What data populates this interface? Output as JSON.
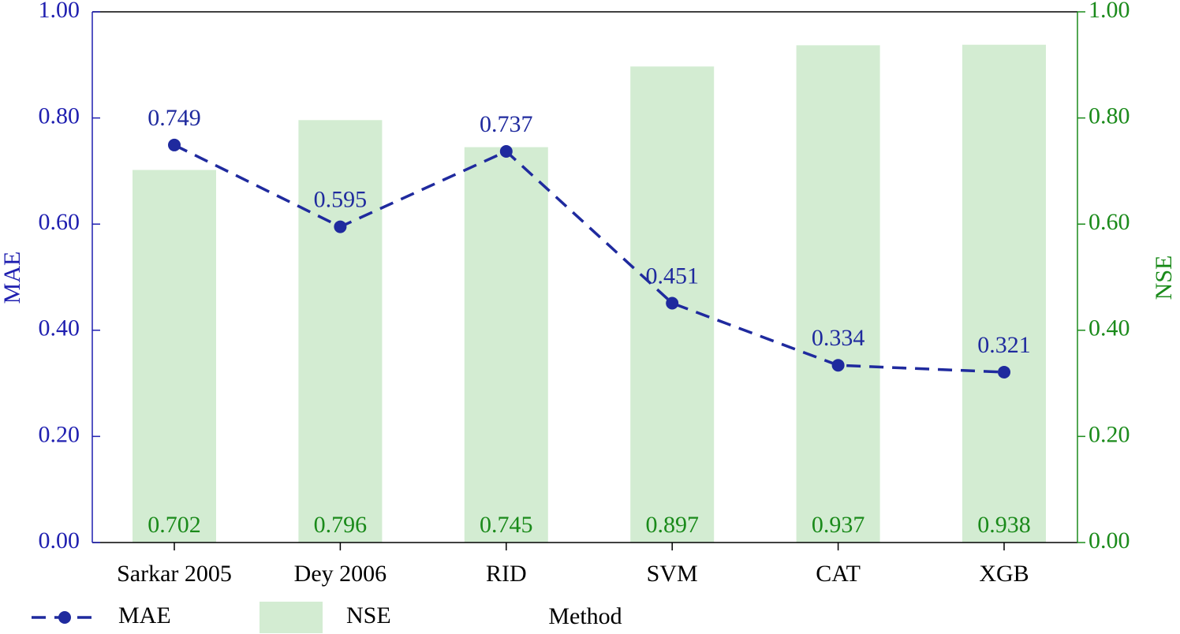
{
  "chart_data": {
    "type": "combo",
    "x_label": "Method",
    "y_label": "MAE",
    "y2_label": "NSE",
    "categories": [
      "Sarkar 2005",
      "Dey 2006",
      "RID",
      "SVM",
      "CAT",
      "XGB"
    ],
    "series": [
      {
        "name": "MAE",
        "type": "line",
        "color": "#1f2a9e",
        "axis": "y",
        "values": [
          0.749,
          0.595,
          0.737,
          0.451,
          0.334,
          0.321
        ]
      },
      {
        "name": "NSE",
        "type": "bar",
        "color": "#d3ecd2",
        "label_color": "#1a8a1a",
        "axis": "y2",
        "values": [
          0.702,
          0.796,
          0.745,
          0.897,
          0.937,
          0.938
        ]
      }
    ],
    "ylim": [
      0,
      1
    ],
    "yticks": [
      {
        "value": 0,
        "label": "0.00"
      },
      {
        "value": 0.2,
        "label": "0.20"
      },
      {
        "value": 0.4,
        "label": "0.40"
      },
      {
        "value": 0.6,
        "label": "0.60"
      },
      {
        "value": 0.8,
        "label": "0.80"
      },
      {
        "value": 1,
        "label": "1.00"
      }
    ],
    "y2lim": [
      0,
      1
    ],
    "y2ticks": [
      {
        "value": 0,
        "label": "0.00"
      },
      {
        "value": 0.2,
        "label": "0.20"
      },
      {
        "value": 0.4,
        "label": "0.40"
      },
      {
        "value": 0.6,
        "label": "0.60"
      },
      {
        "value": 0.8,
        "label": "0.80"
      },
      {
        "value": 1,
        "label": "1.00"
      }
    ],
    "y_color": "#1f1fb0",
    "y2_color": "#1a8a1a",
    "legend": "bottom"
  }
}
